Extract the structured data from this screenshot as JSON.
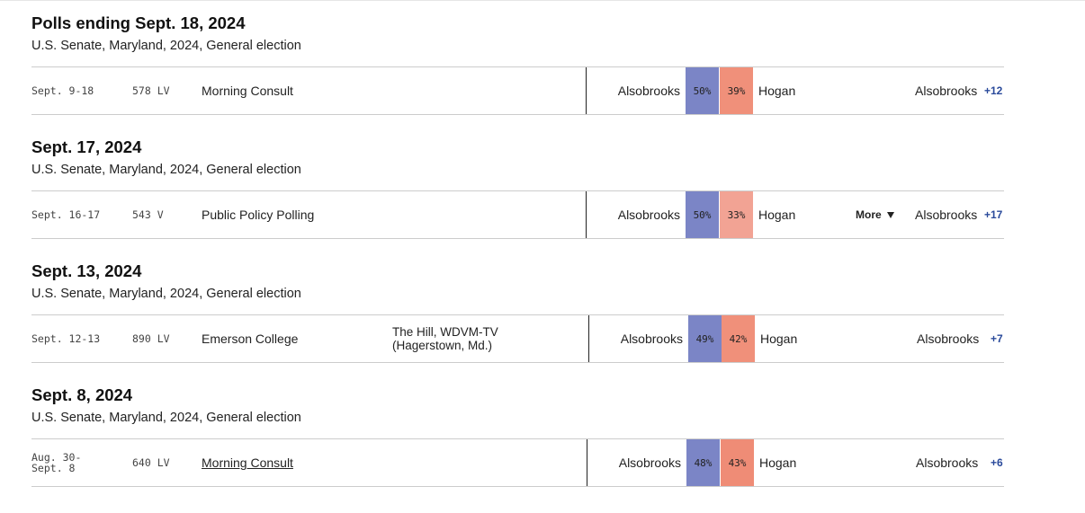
{
  "colors": {
    "dem_bar": "#7b85c6",
    "rep_bar_strong": "#f0907a",
    "rep_bar_light": "#f2a394",
    "margin_text": "#2a4a9b"
  },
  "groups": [
    {
      "title": "Polls ending Sept. 18, 2024",
      "subtitle": "U.S. Senate, Maryland, 2024, General election",
      "poll": {
        "dates": [
          "Sept. 9-18"
        ],
        "sample": "578 LV",
        "pollster": "Morning Consult",
        "sponsor": [],
        "dem_name": "Alsobrooks",
        "dem_pct": "50%",
        "rep_name": "Hogan",
        "rep_pct": "39%",
        "more_label": "",
        "leader": "Alsobrooks",
        "margin": "+12"
      }
    },
    {
      "title": "Sept. 17, 2024",
      "subtitle": "U.S. Senate, Maryland, 2024, General election",
      "poll": {
        "dates": [
          "Sept. 16-17"
        ],
        "sample": "543 V",
        "pollster": "Public Policy Polling",
        "sponsor": [],
        "dem_name": "Alsobrooks",
        "dem_pct": "50%",
        "rep_name": "Hogan",
        "rep_pct": "33%",
        "more_label": "More",
        "leader": "Alsobrooks",
        "margin": "+17"
      }
    },
    {
      "title": "Sept. 13, 2024",
      "subtitle": "U.S. Senate, Maryland, 2024, General election",
      "poll": {
        "dates": [
          "Sept. 12-13"
        ],
        "sample": "890 LV",
        "pollster": "Emerson College",
        "sponsor": [
          "The Hill, WDVM-TV",
          "(Hagerstown, Md.)"
        ],
        "dem_name": "Alsobrooks",
        "dem_pct": "49%",
        "rep_name": "Hogan",
        "rep_pct": "42%",
        "more_label": "",
        "leader": "Alsobrooks",
        "margin": "+7"
      }
    },
    {
      "title": "Sept. 8, 2024",
      "subtitle": "U.S. Senate, Maryland, 2024, General election",
      "poll": {
        "dates": [
          "Aug. 30-",
          "Sept. 8"
        ],
        "sample": "640 LV",
        "pollster": "Morning Consult",
        "sponsor": [],
        "dem_name": "Alsobrooks",
        "dem_pct": "48%",
        "rep_name": "Hogan",
        "rep_pct": "43%",
        "more_label": "",
        "leader": "Alsobrooks",
        "margin": "+6"
      }
    }
  ]
}
